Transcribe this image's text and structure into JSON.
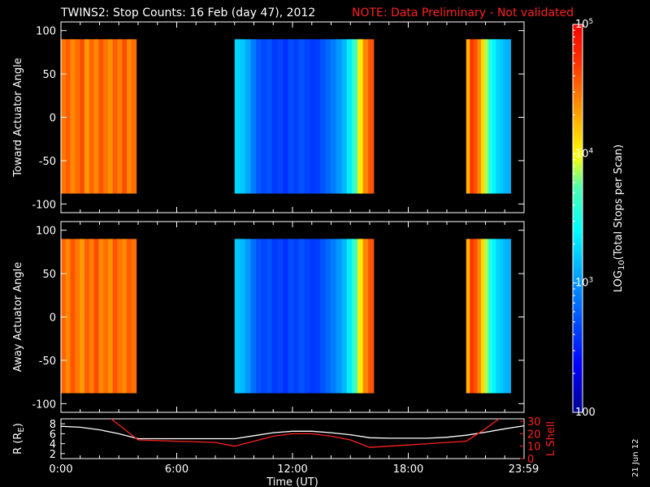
{
  "header": {
    "title": "TWINS2: Stop Counts: 16 Feb (day  47), 2012",
    "note": "NOTE: Data Preliminary - Not validated"
  },
  "colors": {
    "background": "#000000",
    "axes": "#ffffff",
    "note": "#ff2020",
    "lshell_line": "#ff2020",
    "r_line": "#ffffff"
  },
  "side_date": "21 Jun 12",
  "chart_data": [
    {
      "type": "heatmap",
      "name": "toward",
      "ylabel": "Toward Actuator Angle",
      "ylim": [
        -110,
        110
      ],
      "yticks": [
        100,
        50,
        0,
        -50,
        -100
      ],
      "xlim": [
        0,
        24
      ],
      "data_extent_y": [
        -88,
        90
      ],
      "blocks": [
        {
          "t_start": 0.0,
          "t_end": 3.9,
          "profile": [
            0.82,
            0.85,
            0.8,
            0.83,
            0.87,
            0.78,
            0.84,
            0.8,
            0.86,
            0.82,
            0.79,
            0.85,
            0.81,
            0.87,
            0.8,
            0.83
          ]
        },
        {
          "t_start": 9.0,
          "t_end": 16.2,
          "profile": [
            0.42,
            0.4,
            0.36,
            0.3,
            0.25,
            0.22,
            0.24,
            0.2,
            0.22,
            0.19,
            0.23,
            0.21,
            0.24,
            0.22,
            0.2,
            0.21,
            0.24,
            0.27,
            0.3,
            0.34,
            0.38,
            0.45,
            0.55,
            0.68,
            0.8,
            0.86
          ]
        },
        {
          "t_start": 21.0,
          "t_end": 23.3,
          "profile": [
            0.75,
            0.9,
            0.86,
            0.8,
            0.7,
            0.62,
            0.52,
            0.46,
            0.42,
            0.4,
            0.38,
            0.37
          ]
        }
      ]
    },
    {
      "type": "heatmap",
      "name": "away",
      "ylabel": "Away Actuator Angle",
      "ylim": [
        -110,
        110
      ],
      "yticks": [
        100,
        50,
        0,
        -50,
        -100
      ],
      "xlim": [
        0,
        24
      ],
      "data_extent_y": [
        -88,
        90
      ],
      "blocks": [
        {
          "t_start": 0.0,
          "t_end": 3.9,
          "profile": [
            0.84,
            0.8,
            0.86,
            0.82,
            0.78,
            0.85,
            0.81,
            0.87,
            0.8,
            0.83,
            0.79,
            0.86,
            0.82,
            0.8,
            0.85,
            0.83
          ]
        },
        {
          "t_start": 9.0,
          "t_end": 16.2,
          "profile": [
            0.4,
            0.38,
            0.34,
            0.28,
            0.24,
            0.22,
            0.24,
            0.2,
            0.22,
            0.19,
            0.23,
            0.21,
            0.24,
            0.22,
            0.2,
            0.21,
            0.24,
            0.27,
            0.3,
            0.34,
            0.38,
            0.45,
            0.55,
            0.68,
            0.8,
            0.86
          ]
        },
        {
          "t_start": 21.0,
          "t_end": 23.3,
          "profile": [
            0.75,
            0.9,
            0.86,
            0.8,
            0.7,
            0.62,
            0.52,
            0.46,
            0.42,
            0.4,
            0.38,
            0.37
          ]
        }
      ]
    },
    {
      "type": "line",
      "name": "orbit",
      "xlabel": "Time (UT)",
      "ylabel": "R (R",
      "ylabel_sub": "E",
      "ylabel_end": ")",
      "ylim": [
        1,
        9
      ],
      "yticks": [
        8,
        6,
        4,
        2
      ],
      "y2label": "L Shell",
      "y2lim": [
        0,
        32
      ],
      "y2ticks": [
        30,
        20,
        10,
        0
      ],
      "xlim": [
        0,
        24
      ],
      "xticks": [
        {
          "t": 0,
          "label": "0:00"
        },
        {
          "t": 6,
          "label": "6:00"
        },
        {
          "t": 12,
          "label": "12:00"
        },
        {
          "t": 18,
          "label": "18:00"
        },
        {
          "t": 23.98,
          "label": "23:59"
        }
      ],
      "series": [
        {
          "axis": "left",
          "color": "#ffffff",
          "x": [
            0,
            1,
            2,
            3,
            4,
            6,
            8,
            9,
            10,
            11,
            12,
            13,
            14,
            15,
            16,
            17,
            18,
            19,
            20,
            21,
            22,
            23,
            24
          ],
          "y": [
            7.5,
            7.3,
            6.8,
            6.0,
            5.0,
            5.0,
            5.0,
            5.0,
            5.6,
            6.2,
            6.5,
            6.5,
            6.2,
            5.8,
            5.2,
            5.1,
            5.1,
            5.1,
            5.3,
            5.7,
            6.3,
            7.0,
            7.6
          ]
        },
        {
          "axis": "right",
          "color": "#ff2020",
          "x": [
            2.6,
            4.0,
            6.0,
            8.0,
            9.0,
            10.0,
            11.0,
            12.0,
            13.0,
            14.0,
            15.0,
            16.0,
            17.0,
            18.0,
            19.0,
            20.0,
            21.0,
            22.0,
            22.7
          ],
          "y": [
            32,
            15,
            14,
            13,
            10,
            14,
            18,
            20,
            20,
            18,
            15,
            9,
            10,
            11,
            12,
            13,
            14,
            24,
            32
          ]
        }
      ]
    },
    {
      "type": "colorbar",
      "name": "colorbar",
      "label": "LOG",
      "label_sub": "10",
      "label_end": "(Total Stops per Scan)",
      "scale": "log",
      "range": [
        100,
        100000
      ],
      "ticks": [
        {
          "base": "10",
          "exp": "5"
        },
        {
          "base": "10",
          "exp": "4"
        },
        {
          "base": "10",
          "exp": "3"
        },
        {
          "base": "100",
          "exp": ""
        }
      ]
    }
  ]
}
